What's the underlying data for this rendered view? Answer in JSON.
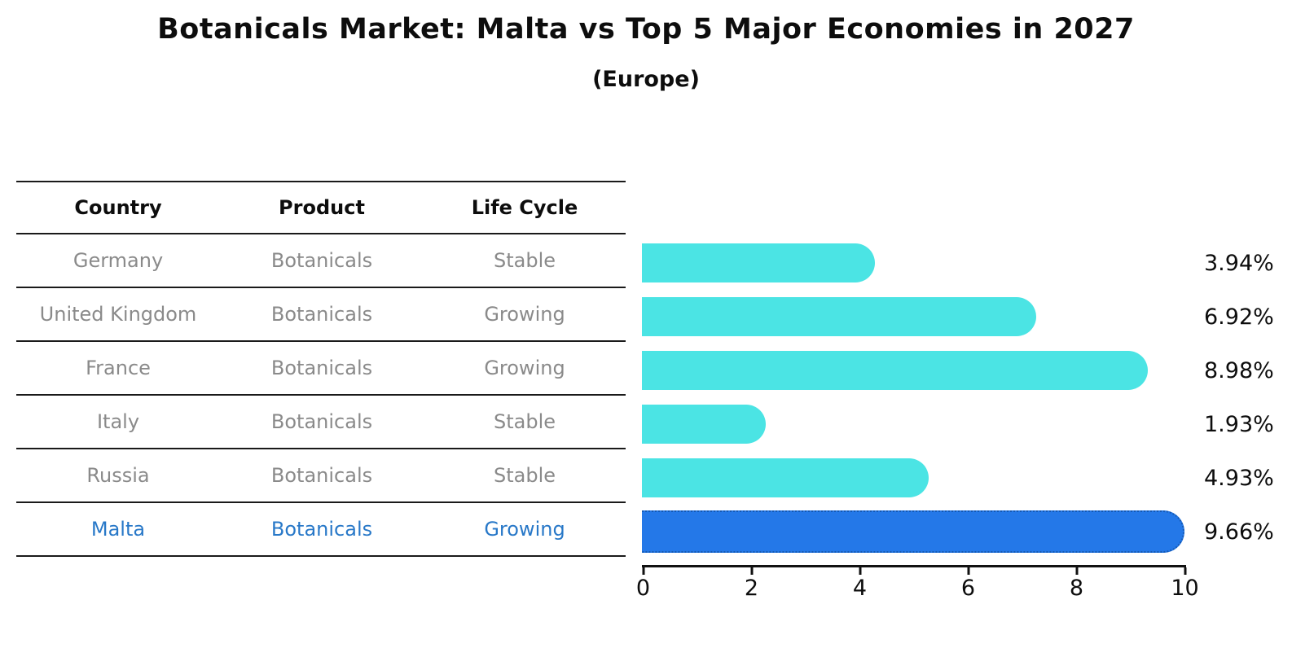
{
  "title": "Botanicals Market: Malta vs Top 5 Major Economies in 2027",
  "subtitle": "(Europe)",
  "table": {
    "headers": [
      "Country",
      "Product",
      "Life Cycle"
    ],
    "rows": [
      {
        "country": "Germany",
        "product": "Botanicals",
        "life_cycle": "Stable",
        "highlight": false
      },
      {
        "country": "United Kingdom",
        "product": "Botanicals",
        "life_cycle": "Growing",
        "highlight": false
      },
      {
        "country": "France",
        "product": "Botanicals",
        "life_cycle": "Growing",
        "highlight": false
      },
      {
        "country": "Italy",
        "product": "Botanicals",
        "life_cycle": "Stable",
        "highlight": false
      },
      {
        "country": "Russia",
        "product": "Botanicals",
        "life_cycle": "Stable",
        "highlight": false
      },
      {
        "country": "Malta",
        "product": "Botanicals",
        "life_cycle": "Growing",
        "highlight": true
      }
    ]
  },
  "chart_data": {
    "type": "bar",
    "orientation": "horizontal",
    "title": "Botanicals Market: Malta vs Top 5 Major Economies in 2027",
    "subtitle": "(Europe)",
    "categories": [
      "Germany",
      "United Kingdom",
      "France",
      "Italy",
      "Russia",
      "Malta"
    ],
    "values": [
      3.94,
      6.92,
      8.98,
      1.93,
      4.93,
      9.66
    ],
    "value_labels": [
      "3.94%",
      "6.92%",
      "8.98%",
      "1.93%",
      "4.93%",
      "9.66%"
    ],
    "xlim": [
      0,
      10
    ],
    "x_ticks": [
      0,
      2,
      4,
      6,
      8,
      10
    ],
    "x_tick_labels": [
      "0",
      "2",
      "4",
      "6",
      "8",
      "10"
    ],
    "grid": false,
    "legend": false,
    "bar_color": "#4be4e4",
    "highlight_color": "#2478e8",
    "highlight_border_color": "#1559b3",
    "highlight_index": 5,
    "highlight_text_color": "#2878c8"
  }
}
